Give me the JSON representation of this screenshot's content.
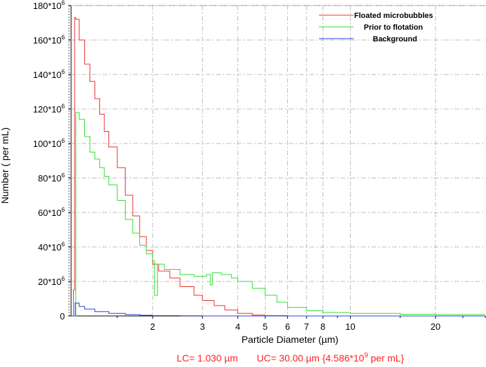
{
  "chart_data": {
    "type": "line",
    "x_scale": "log",
    "xlim": [
      1.03,
      30
    ],
    "ylim": [
      0,
      180000000
    ],
    "xlabel": "Particle Diameter (µm)",
    "ylabel": "Number ( per mL)",
    "x_ticks": [
      {
        "value": 2,
        "label": "2"
      },
      {
        "value": 3,
        "label": "3"
      },
      {
        "value": 4,
        "label": "4"
      },
      {
        "value": 5,
        "label": "5"
      },
      {
        "value": 6,
        "label": "6"
      },
      {
        "value": 7,
        "label": "7"
      },
      {
        "value": 8,
        "label": "8"
      },
      {
        "value": 10,
        "label": "10"
      },
      {
        "value": 20,
        "label": "20"
      }
    ],
    "y_ticks": [
      {
        "value": 0,
        "label": "0"
      },
      {
        "value": 20000000,
        "label": "20*10",
        "exp": "6"
      },
      {
        "value": 40000000,
        "label": "40*10",
        "exp": "6"
      },
      {
        "value": 60000000,
        "label": "60*10",
        "exp": "6"
      },
      {
        "value": 80000000,
        "label": "80*10",
        "exp": "6"
      },
      {
        "value": 100000000,
        "label": "100*10",
        "exp": "6"
      },
      {
        "value": 120000000,
        "label": "120*10",
        "exp": "6"
      },
      {
        "value": 140000000,
        "label": "140*10",
        "exp": "6"
      },
      {
        "value": 160000000,
        "label": "160*10",
        "exp": "6"
      },
      {
        "value": 180000000,
        "label": "180*10",
        "exp": "6"
      }
    ],
    "series": [
      {
        "name": "Floated microbubbles",
        "color": "#e83030",
        "points": [
          [
            1.03,
            0
          ],
          [
            1.045,
            0
          ],
          [
            1.05,
            15000000
          ],
          [
            1.06,
            173000000
          ],
          [
            1.07,
            172000000
          ],
          [
            1.1,
            160000000
          ],
          [
            1.15,
            146000000
          ],
          [
            1.2,
            136000000
          ],
          [
            1.25,
            126000000
          ],
          [
            1.3,
            117000000
          ],
          [
            1.35,
            107000000
          ],
          [
            1.4,
            98000000
          ],
          [
            1.5,
            86000000
          ],
          [
            1.6,
            70000000
          ],
          [
            1.7,
            58000000
          ],
          [
            1.8,
            46000000
          ],
          [
            1.9,
            38000000
          ],
          [
            2.0,
            30000000
          ],
          [
            2.1,
            26000000
          ],
          [
            2.3,
            22000000
          ],
          [
            2.5,
            17000000
          ],
          [
            2.8,
            12000000
          ],
          [
            3.0,
            9000000
          ],
          [
            3.3,
            6000000
          ],
          [
            3.6,
            3500000
          ],
          [
            4.0,
            1500000
          ],
          [
            4.5,
            500000
          ],
          [
            5.0,
            200000
          ],
          [
            6.0,
            0
          ],
          [
            30,
            0
          ]
        ]
      },
      {
        "name": "Prior to flotation",
        "color": "#33dd33",
        "points": [
          [
            1.03,
            0
          ],
          [
            1.065,
            0
          ],
          [
            1.07,
            118000000
          ],
          [
            1.1,
            114000000
          ],
          [
            1.15,
            104000000
          ],
          [
            1.2,
            95000000
          ],
          [
            1.25,
            91000000
          ],
          [
            1.3,
            86000000
          ],
          [
            1.35,
            81000000
          ],
          [
            1.4,
            76000000
          ],
          [
            1.5,
            67000000
          ],
          [
            1.6,
            56000000
          ],
          [
            1.7,
            48000000
          ],
          [
            1.8,
            41000000
          ],
          [
            1.9,
            36000000
          ],
          [
            2.0,
            32000000
          ],
          [
            2.03,
            12000000
          ],
          [
            2.08,
            30000000
          ],
          [
            2.2,
            27000000
          ],
          [
            2.5,
            24000000
          ],
          [
            2.8,
            23000000
          ],
          [
            3.1,
            24000000
          ],
          [
            3.2,
            18000000
          ],
          [
            3.25,
            25000000
          ],
          [
            3.5,
            24000000
          ],
          [
            3.8,
            22000000
          ],
          [
            4.0,
            20000000
          ],
          [
            4.5,
            16000000
          ],
          [
            5.0,
            12000000
          ],
          [
            5.5,
            8000000
          ],
          [
            6.0,
            5000000
          ],
          [
            7.0,
            3000000
          ],
          [
            8.0,
            2000000
          ],
          [
            10,
            1500000
          ],
          [
            15,
            1000000
          ],
          [
            20,
            800000
          ],
          [
            30,
            700000
          ]
        ]
      },
      {
        "name": "Background",
        "color": "#2a3fd8",
        "points": [
          [
            1.03,
            0
          ],
          [
            1.06,
            0
          ],
          [
            1.065,
            7500000
          ],
          [
            1.1,
            5500000
          ],
          [
            1.15,
            4000000
          ],
          [
            1.25,
            2500000
          ],
          [
            1.4,
            1500000
          ],
          [
            1.6,
            800000
          ],
          [
            1.8,
            400000
          ],
          [
            2.0,
            200000
          ],
          [
            2.5,
            100000
          ],
          [
            3.0,
            0
          ],
          [
            30,
            0
          ]
        ]
      }
    ],
    "footer": {
      "lc": "LC= 1.030 µm",
      "uc_prefix": "UC= 30.00 µm {4.586*10",
      "uc_exp": "9",
      "uc_suffix": " per mL}"
    }
  }
}
